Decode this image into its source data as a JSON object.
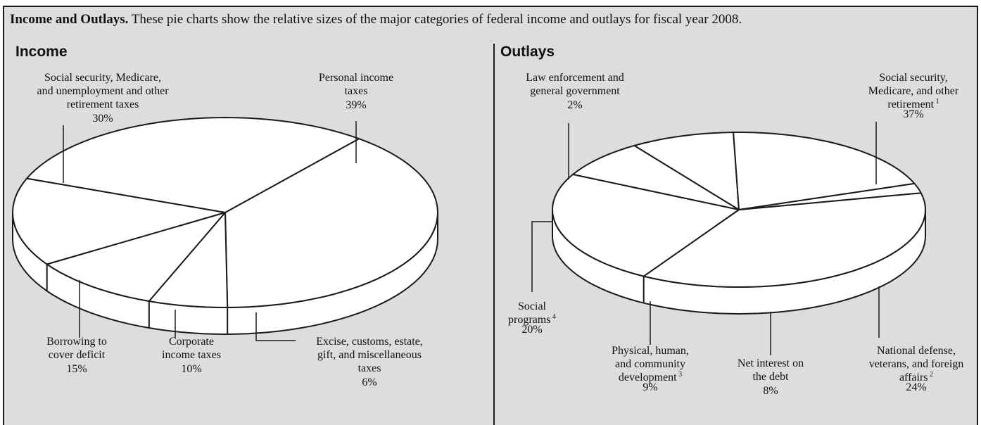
{
  "heading": {
    "bold": "Income and Outlays.",
    "text": " These pie charts show the relative sizes of the major categories of federal income and outlays for fiscal year 2008."
  },
  "chart_data": [
    {
      "type": "pie",
      "title": "Income",
      "slices": [
        {
          "label": [
            "Personal income",
            "taxes"
          ],
          "value": 39,
          "value_label": "39%"
        },
        {
          "label": [
            "Excise, customs, estate,",
            "gift, and miscellaneous",
            "taxes"
          ],
          "value": 6,
          "value_label": "6%"
        },
        {
          "label": [
            "Corporate",
            "income taxes"
          ],
          "value": 10,
          "value_label": "10%"
        },
        {
          "label": [
            "Borrowing to",
            "cover deficit"
          ],
          "value": 15,
          "value_label": "15%"
        },
        {
          "label": [
            "Social security, Medicare,",
            "and unemployment and other",
            "retirement taxes"
          ],
          "value": 30,
          "value_label": "30%"
        }
      ]
    },
    {
      "type": "pie",
      "title": "Outlays",
      "slices": [
        {
          "label": [
            "Social security,",
            "Medicare, and other",
            "retirement"
          ],
          "sup": "1",
          "value": 37,
          "value_label": "37%"
        },
        {
          "label": [
            "National defense,",
            "veterans, and foreign",
            "affairs"
          ],
          "sup": "2",
          "value": 24,
          "value_label": "24%"
        },
        {
          "label": [
            "Net interest on",
            "the debt"
          ],
          "value": 8,
          "value_label": "8%"
        },
        {
          "label": [
            "Physical, human,",
            "and community",
            "development"
          ],
          "sup": "3",
          "value": 9,
          "value_label": "9%"
        },
        {
          "label": [
            "Social",
            "programs"
          ],
          "sup": "4",
          "value": 20,
          "value_label": "20%"
        },
        {
          "label": [
            "Law enforcement and",
            "general government"
          ],
          "value": 2,
          "value_label": "2%"
        }
      ]
    }
  ]
}
